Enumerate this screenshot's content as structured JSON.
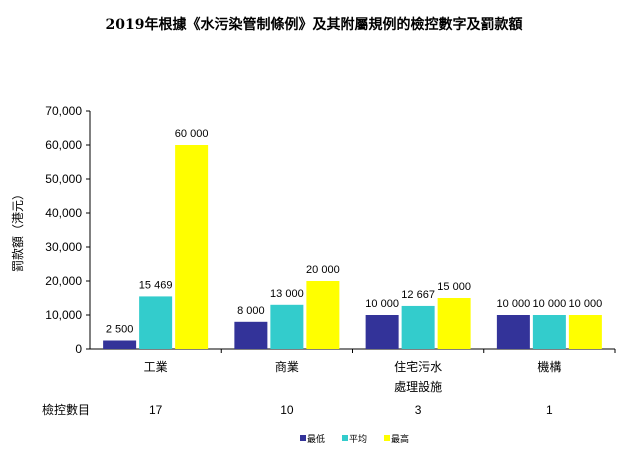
{
  "chart_data": {
    "type": "bar",
    "title": "2019年根據《水污染管制條例》及其附屬規例的檢控數字及罰款額",
    "ylabel": "罰款額（港元）",
    "xlabel": "",
    "ylim": [
      0,
      70000
    ],
    "yticks": [
      "0",
      "10,000",
      "20,000",
      "30,000",
      "40,000",
      "50,000",
      "60,000",
      "70,000"
    ],
    "categories": [
      [
        "工業"
      ],
      [
        "商業"
      ],
      [
        "住宅污水",
        "處理設施"
      ],
      [
        "機構"
      ]
    ],
    "series": [
      {
        "name": "最低",
        "color": "#333399",
        "values": [
          2500,
          8000,
          10000,
          10000
        ],
        "labels": [
          "2 500",
          "8 000",
          "10 000",
          "10 000"
        ]
      },
      {
        "name": "平均",
        "color": "#33CCCC",
        "values": [
          15469,
          13000,
          12667,
          10000
        ],
        "labels": [
          "15 469",
          "13 000",
          "12 667",
          "10 000"
        ]
      },
      {
        "name": "最高",
        "color": "#FFFF00",
        "values": [
          60000,
          20000,
          15000,
          10000
        ],
        "labels": [
          "60 000",
          "20 000",
          "15 000",
          "10 000"
        ]
      }
    ],
    "table": {
      "label": "檢控數目",
      "values": [
        "17",
        "10",
        "3",
        "1"
      ]
    },
    "legend": "bottom",
    "grid": false
  }
}
